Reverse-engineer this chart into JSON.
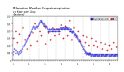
{
  "title": "Milwaukee Weather Evapotranspiration\nvs Rain per Day\n(Inches)",
  "title_fontsize": 3.0,
  "bg_color": "#ffffff",
  "legend_labels": [
    "Evapotranspiration",
    "Rain"
  ],
  "et_color": "#0000cc",
  "rain_color": "#cc0000",
  "black_color": "#000000",
  "grid_color": "#aaaaaa",
  "et_data": [
    [
      1,
      0.04
    ],
    [
      2,
      0.0
    ],
    [
      3,
      0.06
    ],
    [
      4,
      0.0
    ],
    [
      5,
      0.0
    ],
    [
      6,
      0.08
    ],
    [
      7,
      0.0
    ],
    [
      8,
      0.0
    ],
    [
      9,
      0.05
    ],
    [
      10,
      0.0
    ],
    [
      11,
      0.07
    ],
    [
      12,
      0.0
    ],
    [
      13,
      0.0
    ],
    [
      14,
      0.06
    ],
    [
      15,
      0.0
    ],
    [
      16,
      0.0
    ],
    [
      17,
      0.05
    ],
    [
      18,
      0.0
    ],
    [
      19,
      0.04
    ],
    [
      20,
      0.0
    ],
    [
      21,
      0.0
    ],
    [
      22,
      0.06
    ],
    [
      23,
      0.0
    ],
    [
      24,
      0.05
    ],
    [
      25,
      0.0
    ],
    [
      26,
      0.0
    ],
    [
      27,
      0.07
    ],
    [
      28,
      0.0
    ],
    [
      29,
      0.06
    ],
    [
      30,
      0.0
    ],
    [
      32,
      0.0
    ],
    [
      33,
      0.08
    ],
    [
      34,
      0.0
    ],
    [
      35,
      0.0
    ],
    [
      36,
      0.09
    ],
    [
      37,
      0.0
    ],
    [
      38,
      0.0
    ],
    [
      39,
      0.1
    ],
    [
      40,
      0.0
    ],
    [
      41,
      0.0
    ],
    [
      42,
      0.11
    ],
    [
      43,
      0.0
    ],
    [
      44,
      0.0
    ],
    [
      45,
      0.12
    ],
    [
      46,
      0.0
    ],
    [
      47,
      0.13
    ],
    [
      48,
      0.0
    ],
    [
      49,
      0.0
    ],
    [
      50,
      0.14
    ],
    [
      51,
      0.0
    ],
    [
      52,
      0.0
    ],
    [
      53,
      0.15
    ],
    [
      54,
      0.0
    ],
    [
      55,
      0.16
    ],
    [
      56,
      0.0
    ],
    [
      57,
      0.0
    ],
    [
      58,
      0.17
    ],
    [
      60,
      0.18
    ],
    [
      61,
      0.0
    ],
    [
      62,
      0.19
    ],
    [
      63,
      0.0
    ],
    [
      64,
      0.0
    ],
    [
      65,
      0.2
    ],
    [
      66,
      0.0
    ],
    [
      67,
      0.21
    ],
    [
      68,
      0.0
    ],
    [
      69,
      0.22
    ],
    [
      70,
      0.0
    ],
    [
      71,
      0.0
    ],
    [
      72,
      0.23
    ],
    [
      73,
      0.0
    ],
    [
      74,
      0.22
    ],
    [
      75,
      0.0
    ],
    [
      76,
      0.0
    ],
    [
      77,
      0.21
    ],
    [
      78,
      0.0
    ],
    [
      79,
      0.22
    ],
    [
      80,
      0.0
    ],
    [
      81,
      0.23
    ],
    [
      82,
      0.0
    ],
    [
      83,
      0.0
    ],
    [
      84,
      0.22
    ],
    [
      85,
      0.0
    ],
    [
      86,
      0.23
    ],
    [
      87,
      0.0
    ],
    [
      88,
      0.24
    ],
    [
      89,
      0.0
    ],
    [
      91,
      0.25
    ],
    [
      92,
      0.0
    ],
    [
      93,
      0.26
    ],
    [
      94,
      0.0
    ],
    [
      95,
      0.0
    ],
    [
      96,
      0.27
    ],
    [
      97,
      0.0
    ],
    [
      98,
      0.26
    ],
    [
      99,
      0.0
    ],
    [
      100,
      0.27
    ],
    [
      101,
      0.0
    ],
    [
      102,
      0.26
    ],
    [
      103,
      0.0
    ],
    [
      104,
      0.25
    ],
    [
      105,
      0.0
    ],
    [
      106,
      0.24
    ],
    [
      107,
      0.0
    ],
    [
      108,
      0.25
    ],
    [
      109,
      0.0
    ],
    [
      110,
      0.0
    ],
    [
      111,
      0.24
    ],
    [
      112,
      0.0
    ],
    [
      113,
      0.23
    ],
    [
      114,
      0.0
    ],
    [
      115,
      0.22
    ],
    [
      116,
      0.0
    ],
    [
      117,
      0.23
    ],
    [
      118,
      0.0
    ],
    [
      119,
      0.22
    ],
    [
      121,
      0.21
    ],
    [
      122,
      0.0
    ],
    [
      123,
      0.2
    ],
    [
      124,
      0.0
    ],
    [
      125,
      0.21
    ],
    [
      126,
      0.0
    ],
    [
      127,
      0.2
    ],
    [
      128,
      0.0
    ],
    [
      129,
      0.21
    ],
    [
      130,
      0.0
    ],
    [
      131,
      0.2
    ],
    [
      132,
      0.0
    ],
    [
      133,
      0.21
    ],
    [
      134,
      0.0
    ],
    [
      135,
      0.2
    ],
    [
      136,
      0.0
    ],
    [
      137,
      0.21
    ],
    [
      138,
      0.2
    ],
    [
      139,
      0.0
    ],
    [
      140,
      0.21
    ],
    [
      141,
      0.0
    ],
    [
      142,
      0.2
    ],
    [
      143,
      0.0
    ],
    [
      144,
      0.21
    ],
    [
      145,
      0.2
    ],
    [
      146,
      0.0
    ],
    [
      147,
      0.21
    ],
    [
      148,
      0.0
    ],
    [
      149,
      0.2
    ],
    [
      150,
      0.0
    ],
    [
      152,
      0.21
    ],
    [
      153,
      0.2
    ],
    [
      154,
      0.0
    ],
    [
      155,
      0.21
    ],
    [
      156,
      0.0
    ],
    [
      157,
      0.2
    ],
    [
      158,
      0.21
    ],
    [
      159,
      0.0
    ],
    [
      160,
      0.2
    ],
    [
      161,
      0.21
    ],
    [
      162,
      0.0
    ],
    [
      163,
      0.2
    ],
    [
      164,
      0.21
    ],
    [
      165,
      0.0
    ],
    [
      166,
      0.22
    ],
    [
      167,
      0.0
    ],
    [
      168,
      0.21
    ],
    [
      169,
      0.22
    ],
    [
      170,
      0.0
    ],
    [
      171,
      0.21
    ],
    [
      172,
      0.22
    ],
    [
      173,
      0.0
    ],
    [
      174,
      0.21
    ],
    [
      175,
      0.22
    ],
    [
      176,
      0.0
    ],
    [
      177,
      0.21
    ],
    [
      178,
      0.22
    ],
    [
      179,
      0.0
    ],
    [
      180,
      0.21
    ],
    [
      182,
      0.22
    ],
    [
      183,
      0.0
    ],
    [
      184,
      0.21
    ],
    [
      185,
      0.22
    ],
    [
      186,
      0.0
    ],
    [
      187,
      0.21
    ],
    [
      188,
      0.22
    ],
    [
      189,
      0.0
    ],
    [
      190,
      0.21
    ],
    [
      191,
      0.22
    ],
    [
      192,
      0.0
    ],
    [
      193,
      0.21
    ],
    [
      194,
      0.22
    ],
    [
      195,
      0.0
    ],
    [
      196,
      0.21
    ],
    [
      197,
      0.2
    ],
    [
      198,
      0.0
    ],
    [
      199,
      0.21
    ],
    [
      200,
      0.2
    ],
    [
      201,
      0.0
    ],
    [
      202,
      0.21
    ],
    [
      203,
      0.2
    ],
    [
      204,
      0.0
    ],
    [
      205,
      0.19
    ],
    [
      206,
      0.0
    ],
    [
      207,
      0.2
    ],
    [
      208,
      0.19
    ],
    [
      209,
      0.0
    ],
    [
      210,
      0.2
    ],
    [
      211,
      0.0
    ],
    [
      213,
      0.19
    ],
    [
      214,
      0.18
    ],
    [
      215,
      0.0
    ],
    [
      216,
      0.17
    ],
    [
      217,
      0.0
    ],
    [
      218,
      0.18
    ],
    [
      219,
      0.17
    ],
    [
      220,
      0.0
    ],
    [
      221,
      0.16
    ],
    [
      222,
      0.0
    ],
    [
      223,
      0.17
    ],
    [
      224,
      0.16
    ],
    [
      225,
      0.0
    ],
    [
      226,
      0.15
    ],
    [
      227,
      0.0
    ],
    [
      228,
      0.14
    ],
    [
      229,
      0.0
    ],
    [
      230,
      0.13
    ],
    [
      231,
      0.0
    ],
    [
      232,
      0.14
    ],
    [
      233,
      0.13
    ],
    [
      234,
      0.0
    ],
    [
      235,
      0.12
    ],
    [
      236,
      0.0
    ],
    [
      237,
      0.11
    ],
    [
      238,
      0.0
    ],
    [
      239,
      0.1
    ],
    [
      240,
      0.0
    ],
    [
      241,
      0.09
    ],
    [
      242,
      0.0
    ],
    [
      244,
      0.08
    ],
    [
      245,
      0.0
    ],
    [
      246,
      0.09
    ],
    [
      247,
      0.08
    ],
    [
      248,
      0.0
    ],
    [
      249,
      0.07
    ],
    [
      250,
      0.0
    ],
    [
      251,
      0.06
    ],
    [
      252,
      0.0
    ],
    [
      253,
      0.05
    ],
    [
      254,
      0.0
    ],
    [
      255,
      0.06
    ],
    [
      256,
      0.05
    ],
    [
      257,
      0.0
    ],
    [
      258,
      0.04
    ],
    [
      259,
      0.0
    ],
    [
      260,
      0.05
    ],
    [
      261,
      0.04
    ],
    [
      262,
      0.0
    ],
    [
      263,
      0.05
    ],
    [
      264,
      0.0
    ],
    [
      265,
      0.04
    ],
    [
      266,
      0.05
    ],
    [
      267,
      0.04
    ],
    [
      268,
      0.0
    ],
    [
      269,
      0.05
    ],
    [
      270,
      0.04
    ],
    [
      271,
      0.0
    ],
    [
      272,
      0.03
    ],
    [
      274,
      0.04
    ],
    [
      275,
      0.03
    ],
    [
      276,
      0.0
    ],
    [
      277,
      0.04
    ],
    [
      278,
      0.03
    ],
    [
      279,
      0.0
    ],
    [
      280,
      0.04
    ],
    [
      281,
      0.03
    ],
    [
      282,
      0.0
    ],
    [
      283,
      0.04
    ],
    [
      284,
      0.03
    ],
    [
      285,
      0.0
    ],
    [
      286,
      0.04
    ],
    [
      287,
      0.03
    ],
    [
      288,
      0.0
    ],
    [
      289,
      0.04
    ],
    [
      290,
      0.03
    ],
    [
      291,
      0.0
    ],
    [
      292,
      0.04
    ],
    [
      293,
      0.03
    ],
    [
      294,
      0.0
    ],
    [
      295,
      0.04
    ],
    [
      296,
      0.03
    ],
    [
      297,
      0.0
    ],
    [
      298,
      0.04
    ],
    [
      299,
      0.03
    ],
    [
      300,
      0.0
    ],
    [
      301,
      0.04
    ],
    [
      302,
      0.03
    ],
    [
      303,
      0.0
    ],
    [
      305,
      0.04
    ],
    [
      306,
      0.03
    ],
    [
      307,
      0.0
    ],
    [
      308,
      0.04
    ],
    [
      309,
      0.03
    ],
    [
      310,
      0.0
    ],
    [
      311,
      0.04
    ],
    [
      312,
      0.03
    ],
    [
      313,
      0.0
    ],
    [
      314,
      0.04
    ],
    [
      315,
      0.03
    ],
    [
      316,
      0.0
    ],
    [
      317,
      0.04
    ],
    [
      318,
      0.03
    ],
    [
      319,
      0.0
    ],
    [
      320,
      0.04
    ],
    [
      321,
      0.03
    ],
    [
      322,
      0.0
    ],
    [
      323,
      0.04
    ],
    [
      324,
      0.03
    ],
    [
      325,
      0.0
    ],
    [
      326,
      0.04
    ],
    [
      327,
      0.03
    ],
    [
      328,
      0.0
    ],
    [
      329,
      0.04
    ],
    [
      330,
      0.03
    ],
    [
      331,
      0.0
    ],
    [
      332,
      0.04
    ],
    [
      333,
      0.0
    ],
    [
      335,
      0.03
    ],
    [
      336,
      0.0
    ],
    [
      337,
      0.04
    ],
    [
      338,
      0.03
    ],
    [
      339,
      0.0
    ],
    [
      340,
      0.04
    ],
    [
      341,
      0.03
    ],
    [
      342,
      0.0
    ],
    [
      343,
      0.04
    ],
    [
      344,
      0.03
    ],
    [
      345,
      0.0
    ],
    [
      346,
      0.04
    ],
    [
      347,
      0.03
    ],
    [
      348,
      0.0
    ],
    [
      349,
      0.04
    ],
    [
      350,
      0.03
    ],
    [
      351,
      0.0
    ],
    [
      352,
      0.04
    ],
    [
      353,
      0.03
    ],
    [
      354,
      0.0
    ],
    [
      355,
      0.04
    ],
    [
      356,
      0.03
    ],
    [
      357,
      0.0
    ],
    [
      358,
      0.04
    ],
    [
      359,
      0.03
    ],
    [
      360,
      0.0
    ],
    [
      361,
      0.04
    ],
    [
      362,
      0.03
    ],
    [
      363,
      0.0
    ],
    [
      364,
      0.04
    ]
  ],
  "rain_data": [
    [
      3,
      0.15
    ],
    [
      10,
      0.2
    ],
    [
      16,
      0.12
    ],
    [
      22,
      0.18
    ],
    [
      35,
      0.22
    ],
    [
      43,
      0.14
    ],
    [
      50,
      0.08
    ],
    [
      57,
      0.17
    ],
    [
      63,
      0.1
    ],
    [
      70,
      0.19
    ],
    [
      78,
      0.25
    ],
    [
      85,
      0.13
    ],
    [
      93,
      0.2
    ],
    [
      100,
      0.17
    ],
    [
      108,
      0.23
    ],
    [
      115,
      0.11
    ],
    [
      123,
      0.19
    ],
    [
      130,
      0.14
    ],
    [
      138,
      0.22
    ],
    [
      145,
      0.17
    ],
    [
      153,
      0.21
    ],
    [
      160,
      0.18
    ],
    [
      168,
      0.24
    ],
    [
      175,
      0.15
    ],
    [
      183,
      0.23
    ],
    [
      190,
      0.17
    ],
    [
      197,
      0.27
    ],
    [
      204,
      0.14
    ],
    [
      213,
      0.22
    ],
    [
      220,
      0.16
    ],
    [
      228,
      0.2
    ],
    [
      235,
      0.13
    ],
    [
      244,
      0.17
    ],
    [
      251,
      0.12
    ],
    [
      258,
      0.16
    ],
    [
      265,
      0.1
    ],
    [
      274,
      0.15
    ],
    [
      281,
      0.1
    ],
    [
      288,
      0.13
    ],
    [
      295,
      0.09
    ],
    [
      305,
      0.12
    ],
    [
      312,
      0.08
    ],
    [
      320,
      0.11
    ],
    [
      328,
      0.07
    ],
    [
      336,
      0.1
    ],
    [
      343,
      0.08
    ],
    [
      351,
      0.12
    ],
    [
      360,
      0.09
    ]
  ],
  "ylim": [
    0.0,
    0.3
  ],
  "ytick_vals": [
    0.0,
    0.05,
    0.1,
    0.15,
    0.2,
    0.25,
    0.3
  ],
  "month_boundaries": [
    1,
    32,
    60,
    91,
    121,
    152,
    182,
    213,
    244,
    274,
    305,
    335,
    365
  ],
  "xtick_positions": [
    1,
    8,
    15,
    22,
    29,
    36,
    43,
    50,
    57,
    64,
    71,
    78,
    85,
    92,
    99,
    106,
    113,
    120,
    127,
    134,
    141,
    148,
    155,
    162,
    169,
    176,
    183,
    190,
    197,
    204,
    211,
    218,
    225,
    232,
    239,
    246,
    253,
    260,
    267,
    274,
    281,
    288,
    295,
    302,
    309,
    316,
    323,
    330,
    337,
    344,
    351,
    358,
    365
  ],
  "xtick_labels": [
    "1",
    "",
    "",
    "",
    "",
    "",
    "",
    "",
    "1",
    "",
    "",
    "",
    "",
    "",
    "",
    "",
    "1",
    "",
    "",
    "",
    "",
    "",
    "",
    "",
    "1",
    "",
    "",
    "",
    "",
    "",
    "",
    "",
    "1",
    "",
    "",
    "",
    "",
    "",
    "",
    "",
    "1",
    "",
    "",
    "",
    "",
    "",
    "",
    "",
    "1",
    "",
    "",
    "",
    ""
  ]
}
